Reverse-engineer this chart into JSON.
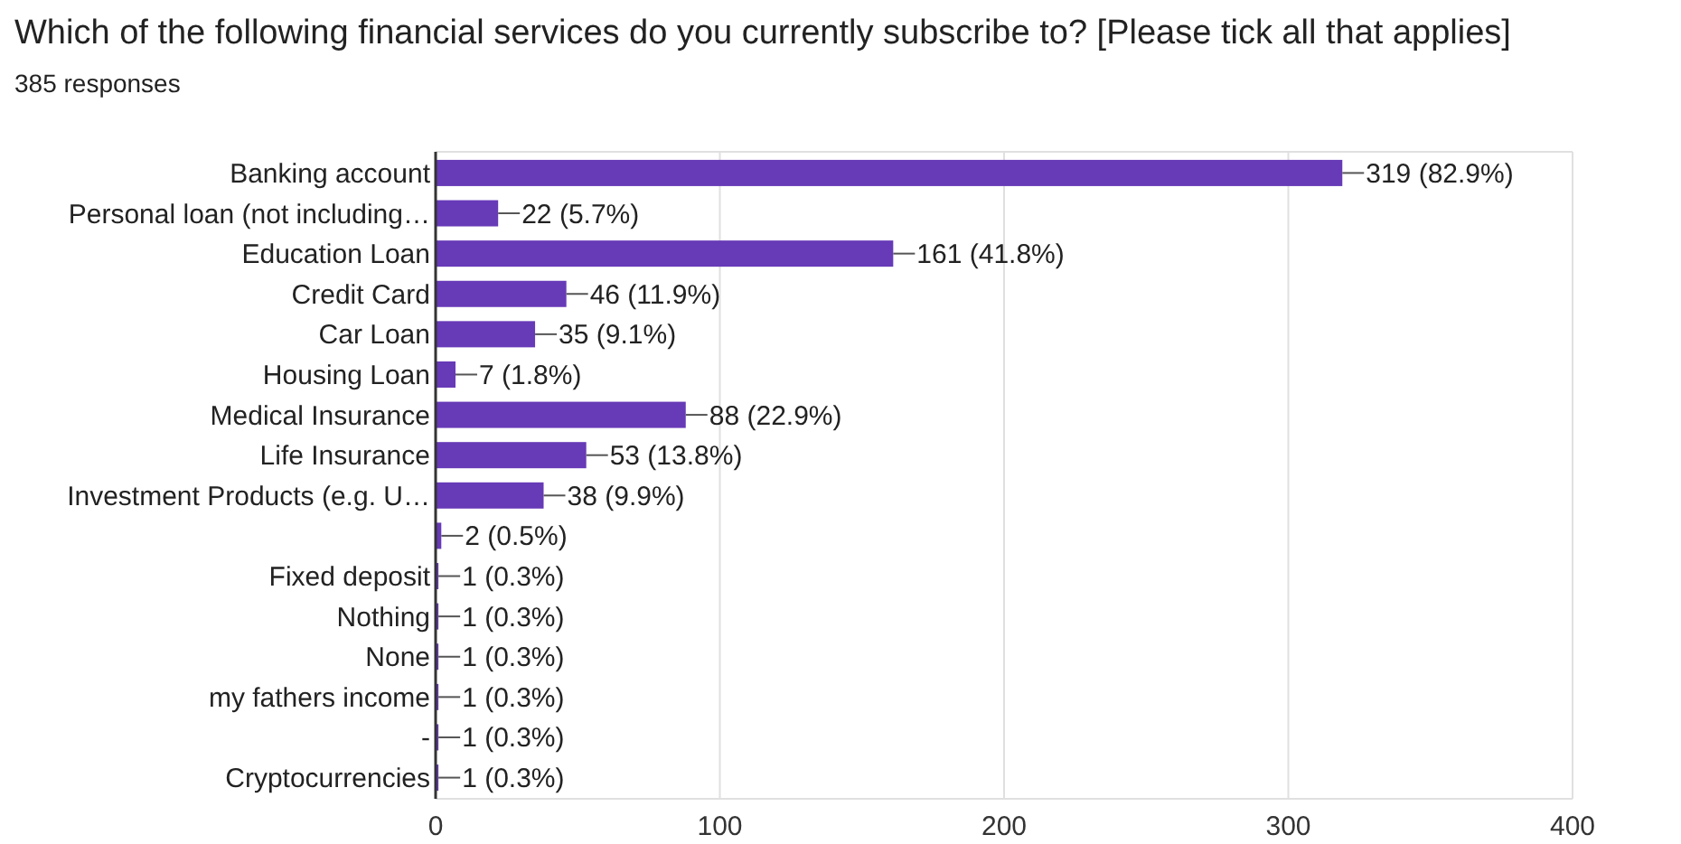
{
  "chart_data": {
    "type": "bar",
    "orientation": "horizontal",
    "title": "Which of the following financial services do you currently subscribe to? [Please tick all that applies]",
    "subtitle": "385 responses",
    "categories": [
      "Banking account",
      "Personal loan (not including…",
      "Education Loan",
      "Credit Card",
      "Car Loan",
      "Housing Loan",
      "Medical Insurance",
      "Life Insurance",
      "Investment Products (e.g. U…",
      null,
      "Fixed deposit",
      "Nothing",
      "None",
      "my fathers income",
      "-",
      "Cryptocurrencies"
    ],
    "values": [
      319,
      22,
      161,
      46,
      35,
      7,
      88,
      53,
      38,
      2,
      1,
      1,
      1,
      1,
      1,
      1
    ],
    "value_labels": [
      "319 (82.9%)",
      "22 (5.7%)",
      "161 (41.8%)",
      "46 (11.9%)",
      "35 (9.1%)",
      "7 (1.8%)",
      "88 (22.9%)",
      "53 (13.8%)",
      "38 (9.9%)",
      "2 (0.5%)",
      "1 (0.3%)",
      "1 (0.3%)",
      "1 (0.3%)",
      "1 (0.3%)",
      "1 (0.3%)",
      "1 (0.3%)"
    ],
    "color": "#673ab7",
    "xlim": [
      0,
      400
    ],
    "xticks": [
      0,
      100,
      200,
      300,
      400
    ],
    "grid": "x"
  }
}
